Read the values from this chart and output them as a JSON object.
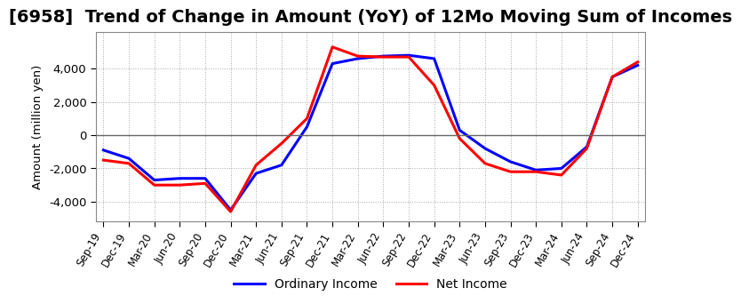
{
  "title": "[6958]  Trend of Change in Amount (YoY) of 12Mo Moving Sum of Incomes",
  "ylabel": "Amount (million yen)",
  "x_labels": [
    "Sep-19",
    "Dec-19",
    "Mar-20",
    "Jun-20",
    "Sep-20",
    "Dec-20",
    "Mar-21",
    "Jun-21",
    "Sep-21",
    "Dec-21",
    "Mar-22",
    "Jun-22",
    "Sep-22",
    "Dec-22",
    "Mar-23",
    "Jun-23",
    "Sep-23",
    "Dec-23",
    "Mar-24",
    "Jun-24",
    "Sep-24",
    "Dec-24"
  ],
  "ordinary_income": [
    -900,
    -1400,
    -2700,
    -2600,
    -2600,
    -4500,
    -2300,
    -1800,
    500,
    4300,
    4600,
    4750,
    4800,
    4600,
    300,
    -800,
    -1600,
    -2100,
    -2000,
    -700,
    3500,
    4200
  ],
  "net_income": [
    -1500,
    -1700,
    -3000,
    -3000,
    -2900,
    -4600,
    -1800,
    -500,
    1000,
    5300,
    4750,
    4700,
    4700,
    3000,
    -200,
    -1700,
    -2200,
    -2200,
    -2400,
    -800,
    3500,
    4400
  ],
  "ordinary_color": "#0000ff",
  "net_color": "#ff0000",
  "ylim": [
    -5200,
    6200
  ],
  "yticks": [
    -4000,
    -2000,
    0,
    2000,
    4000
  ],
  "background_color": "#ffffff",
  "grid_color": "#aaaaaa",
  "title_fontsize": 14,
  "legend_labels": [
    "Ordinary Income",
    "Net Income"
  ]
}
